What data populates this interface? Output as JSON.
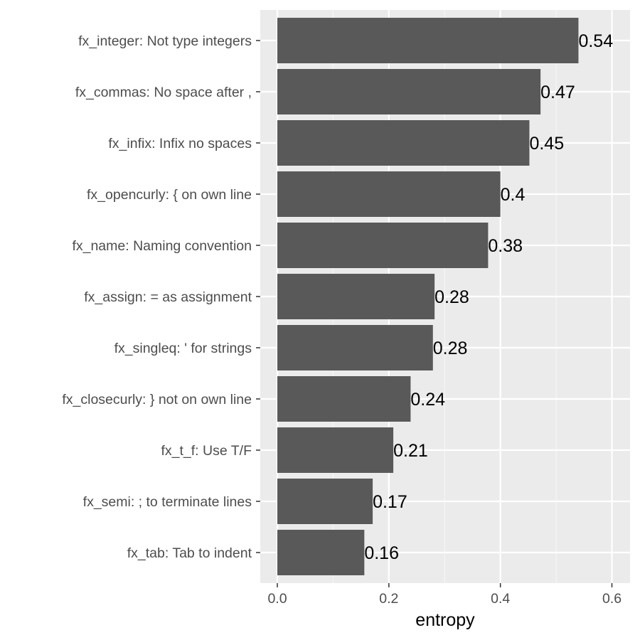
{
  "chart_data": {
    "type": "bar",
    "orientation": "horizontal",
    "title": "",
    "xlabel": "entropy",
    "ylabel": "",
    "xlim": [
      0,
      0.63
    ],
    "xticks": [
      0.0,
      0.2,
      0.4,
      0.6
    ],
    "xtick_labels": [
      "0.0",
      "0.2",
      "0.4",
      "0.6"
    ],
    "grid": true,
    "categories": [
      "fx_integer: Not type integers",
      "fx_commas: No space after ,",
      "fx_infix: Infix no spaces",
      "fx_opencurly: { on own line",
      "fx_name: Naming convention",
      "fx_assign: = as assignment",
      "fx_singleq: ' for strings",
      "fx_closecurly: } not on own line",
      "fx_t_f: Use T/F",
      "fx_semi: ; to terminate lines",
      "fx_tab: Tab to indent"
    ],
    "values": [
      0.54,
      0.472,
      0.452,
      0.4,
      0.378,
      0.282,
      0.279,
      0.239,
      0.208,
      0.171,
      0.156
    ],
    "value_labels": [
      "0.54",
      "0.47",
      "0.45",
      "0.4",
      "0.38",
      "0.28",
      "0.28",
      "0.24",
      "0.21",
      "0.17",
      "0.16"
    ],
    "colors": {
      "bar": "#595959",
      "panel": "#ebebeb",
      "grid_major": "#ffffff",
      "grid_minor": "#f7f7f7",
      "tick": "#333333",
      "tick_label": "#4d4d4d"
    }
  }
}
